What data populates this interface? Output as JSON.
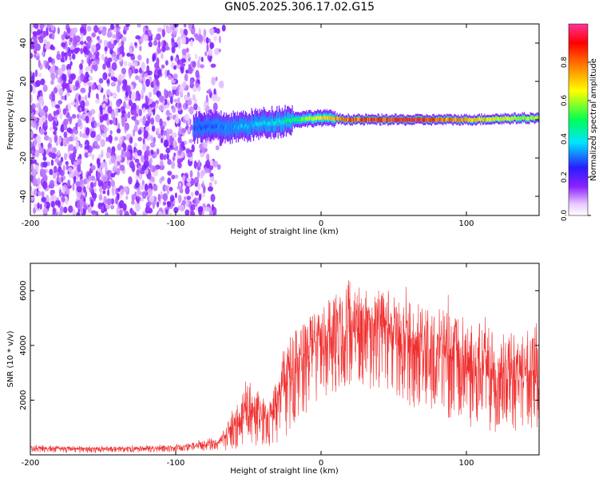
{
  "page_title": "GN05.2025.306.17.02.G15",
  "chart_data": [
    {
      "type": "heatmap",
      "title": "GN05.2025.306.17.02.G15",
      "xlabel": "Height of straight line (km)",
      "ylabel": "Frequency (Hz)",
      "xlim": [
        -200,
        150
      ],
      "ylim": [
        -50,
        50
      ],
      "x_ticks": [
        -200,
        -100,
        0,
        100
      ],
      "y_ticks": [
        -40,
        -20,
        0,
        20,
        40
      ],
      "colorbar": {
        "label": "Normalized spectral amplitude",
        "range": [
          0,
          1
        ],
        "ticks": [
          "0.0",
          "0.2",
          "0.4",
          "0.6",
          "0.8"
        ],
        "colors": [
          "#ffffff",
          "#e9c9ff",
          "#8b22ff",
          "#2a1cff",
          "#00e5ff",
          "#00ff55",
          "#ffff00",
          "#ff7f00",
          "#ff0000",
          "#ff3399"
        ]
      },
      "ridge": {
        "description_points": [
          {
            "x": -85,
            "y": -4,
            "amplitude": 0.3
          },
          {
            "x": -60,
            "y": -4,
            "amplitude": 0.35
          },
          {
            "x": -40,
            "y": -2,
            "amplitude": 0.4
          },
          {
            "x": -20,
            "y": 0,
            "amplitude": 0.5
          },
          {
            "x": 0,
            "y": 1,
            "amplitude": 0.7
          },
          {
            "x": 20,
            "y": 0,
            "amplitude": 0.85
          },
          {
            "x": 60,
            "y": 0,
            "amplitude": 0.95
          },
          {
            "x": 100,
            "y": 0,
            "amplitude": 0.75
          },
          {
            "x": 150,
            "y": 1,
            "amplitude": 0.6
          }
        ]
      }
    },
    {
      "type": "line",
      "xlabel": "Height of straight line (km)",
      "ylabel": "SNR (10 * v/v)",
      "xlim": [
        -200,
        150
      ],
      "ylim": [
        0,
        7000
      ],
      "x_ticks": [
        -200,
        -100,
        0,
        100
      ],
      "y_ticks": [
        2000,
        4000,
        6000
      ],
      "color": "#f03030",
      "envelope": [
        {
          "x": -200,
          "low": 80,
          "high": 350
        },
        {
          "x": -150,
          "low": 80,
          "high": 300
        },
        {
          "x": -100,
          "low": 100,
          "high": 350
        },
        {
          "x": -70,
          "low": 150,
          "high": 600
        },
        {
          "x": -50,
          "low": 200,
          "high": 2600
        },
        {
          "x": -35,
          "low": 300,
          "high": 2000
        },
        {
          "x": -25,
          "low": 600,
          "high": 4200
        },
        {
          "x": -10,
          "low": 1500,
          "high": 5000
        },
        {
          "x": 0,
          "low": 2000,
          "high": 5500
        },
        {
          "x": 20,
          "low": 2500,
          "high": 6500
        },
        {
          "x": 40,
          "low": 2300,
          "high": 6200
        },
        {
          "x": 60,
          "low": 1800,
          "high": 5600
        },
        {
          "x": 80,
          "low": 1500,
          "high": 5400
        },
        {
          "x": 100,
          "low": 1000,
          "high": 5000
        },
        {
          "x": 120,
          "low": 800,
          "high": 4600
        },
        {
          "x": 150,
          "low": 1000,
          "high": 4300
        }
      ]
    }
  ]
}
